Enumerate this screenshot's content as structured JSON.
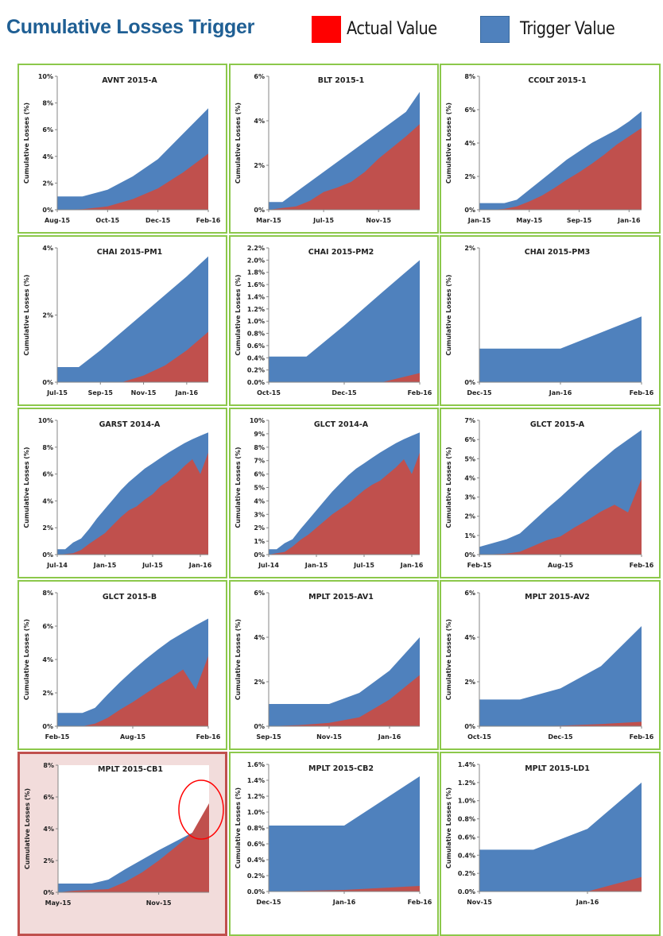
{
  "header": {
    "title": "Cumulative Losses Trigger",
    "legend": [
      {
        "label": "Actual Value",
        "color": "#ff0000"
      },
      {
        "label": "Trigger Value",
        "color": "#4f81bd"
      }
    ]
  },
  "colors": {
    "actual_fill": "#c0504d",
    "trigger_fill": "#4f81bd",
    "panel_border": "#8cc84b",
    "alert_border": "#c0504d",
    "alert_background": "#f2dcdb",
    "alert_circle": "#ff0000"
  },
  "chart_data": [
    {
      "type": "area",
      "title": "AVNT 2015-A",
      "ylabel": "Cumulative Losses (%)",
      "x": [
        "Aug-15",
        "Sep-15",
        "Oct-15",
        "Nov-15",
        "Dec-15",
        "Jan-16",
        "Feb-16"
      ],
      "xticks": [
        "Aug-15",
        "Oct-15",
        "Dec-15",
        "Feb-16"
      ],
      "ylim": [
        0,
        10
      ],
      "yticks": [
        "0%",
        "2%",
        "4%",
        "6%",
        "8%",
        "10%"
      ],
      "ytick_values": [
        0,
        2,
        4,
        6,
        8,
        10
      ],
      "series": [
        {
          "name": "Trigger Value",
          "values": [
            1.0,
            1.0,
            1.5,
            2.5,
            3.8,
            5.7,
            7.6
          ]
        },
        {
          "name": "Actual Value",
          "values": [
            0.0,
            0.05,
            0.25,
            0.8,
            1.6,
            2.8,
            4.2
          ]
        }
      ]
    },
    {
      "type": "area",
      "title": "BLT 2015-1",
      "ylabel": "Cumulative Losses (%)",
      "x": [
        "Mar-15",
        "Apr-15",
        "May-15",
        "Jun-15",
        "Jul-15",
        "Aug-15",
        "Sep-15",
        "Oct-15",
        "Nov-15",
        "Dec-15",
        "Jan-16",
        "Feb-16"
      ],
      "xticks": [
        "Mar-15",
        "Jul-15",
        "Nov-15"
      ],
      "ylim": [
        0,
        6
      ],
      "yticks": [
        "0%",
        "2%",
        "4%",
        "6%"
      ],
      "ytick_values": [
        0,
        2,
        4,
        6
      ],
      "series": [
        {
          "name": "Trigger Value",
          "values": [
            0.35,
            0.35,
            0.8,
            1.25,
            1.7,
            2.15,
            2.6,
            3.05,
            3.5,
            3.95,
            4.4,
            5.3
          ]
        },
        {
          "name": "Actual Value",
          "values": [
            0.0,
            0.08,
            0.15,
            0.4,
            0.8,
            1.0,
            1.25,
            1.7,
            2.3,
            2.8,
            3.3,
            3.85
          ]
        }
      ]
    },
    {
      "type": "area",
      "title": "CCOLT 2015-1",
      "ylabel": "Cumulative Losses (%)",
      "x": [
        "Jan-15",
        "Feb-15",
        "Mar-15",
        "Apr-15",
        "May-15",
        "Jun-15",
        "Jul-15",
        "Aug-15",
        "Sep-15",
        "Oct-15",
        "Nov-15",
        "Dec-15",
        "Jan-16",
        "Feb-16"
      ],
      "xticks": [
        "Jan-15",
        "May-15",
        "Sep-15",
        "Jan-16"
      ],
      "ylim": [
        0,
        8
      ],
      "yticks": [
        "0%",
        "2%",
        "4%",
        "6%",
        "8%"
      ],
      "ytick_values": [
        0,
        2,
        4,
        6,
        8
      ],
      "series": [
        {
          "name": "Trigger Value",
          "values": [
            0.4,
            0.4,
            0.4,
            0.6,
            1.2,
            1.8,
            2.4,
            3.0,
            3.5,
            4.0,
            4.4,
            4.8,
            5.3,
            5.9
          ]
        },
        {
          "name": "Actual Value",
          "values": [
            0.0,
            0.0,
            0.05,
            0.2,
            0.5,
            0.85,
            1.3,
            1.8,
            2.25,
            2.75,
            3.3,
            3.9,
            4.4,
            4.9
          ]
        }
      ]
    },
    {
      "type": "area",
      "title": "CHAI 2015-PM1",
      "ylabel": "Cumulative Losses (%)",
      "x": [
        "Jul-15",
        "Aug-15",
        "Sep-15",
        "Oct-15",
        "Nov-15",
        "Dec-15",
        "Jan-16",
        "Feb-16"
      ],
      "xticks": [
        "Jul-15",
        "Sep-15",
        "Nov-15",
        "Jan-16"
      ],
      "ylim": [
        0,
        4
      ],
      "yticks": [
        "0%",
        "2%",
        "4%"
      ],
      "ytick_values": [
        0,
        2,
        4
      ],
      "series": [
        {
          "name": "Trigger Value",
          "values": [
            0.45,
            0.45,
            0.95,
            1.5,
            2.05,
            2.6,
            3.15,
            3.75
          ]
        },
        {
          "name": "Actual Value",
          "values": [
            0.0,
            0.0,
            0.0,
            0.0,
            0.2,
            0.5,
            0.95,
            1.5
          ]
        }
      ]
    },
    {
      "type": "area",
      "title": "CHAI 2015-PM2",
      "ylabel": "Cumulative Losses (%)",
      "x": [
        "Oct-15",
        "Nov-15",
        "Dec-15",
        "Jan-16",
        "Feb-16"
      ],
      "xticks": [
        "Oct-15",
        "Dec-15",
        "Feb-16"
      ],
      "ylim": [
        0,
        2.2
      ],
      "yticks": [
        "0.0%",
        "0.2%",
        "0.4%",
        "0.6%",
        "0.8%",
        "1.0%",
        "1.2%",
        "1.4%",
        "1.6%",
        "1.8%",
        "2.0%",
        "2.2%"
      ],
      "ytick_values": [
        0,
        0.2,
        0.4,
        0.6,
        0.8,
        1.0,
        1.2,
        1.4,
        1.6,
        1.8,
        2.0,
        2.2
      ],
      "series": [
        {
          "name": "Trigger Value",
          "values": [
            0.42,
            0.42,
            0.93,
            1.47,
            2.0
          ]
        },
        {
          "name": "Actual Value",
          "values": [
            0.0,
            0.0,
            0.0,
            0.0,
            0.15
          ]
        }
      ]
    },
    {
      "type": "area",
      "title": "CHAI 2015-PM3",
      "ylabel": "Cumulative Losses (%)",
      "x": [
        "Dec-15",
        "Jan-16",
        "Feb-16"
      ],
      "xticks": [
        "Dec-15",
        "Jan-16",
        "Feb-16"
      ],
      "ylim": [
        0,
        2
      ],
      "yticks": [
        "0%",
        "2%"
      ],
      "ytick_values": [
        0,
        2
      ],
      "series": [
        {
          "name": "Trigger Value",
          "values": [
            0.5,
            0.5,
            0.98
          ]
        },
        {
          "name": "Actual Value",
          "values": [
            0.0,
            0.0,
            0.0
          ]
        }
      ]
    },
    {
      "type": "area",
      "title": "GARST 2014-A",
      "ylabel": "Cumulative Losses (%)",
      "x": [
        "Jul-14",
        "Aug-14",
        "Sep-14",
        "Oct-14",
        "Nov-14",
        "Dec-14",
        "Jan-15",
        "Feb-15",
        "Mar-15",
        "Apr-15",
        "May-15",
        "Jun-15",
        "Jul-15",
        "Aug-15",
        "Sep-15",
        "Oct-15",
        "Nov-15",
        "Dec-15",
        "Jan-16",
        "Feb-16"
      ],
      "xticks": [
        "Jul-14",
        "Jan-15",
        "Jul-15",
        "Jan-16"
      ],
      "ylim": [
        0,
        10
      ],
      "yticks": [
        "0%",
        "2%",
        "4%",
        "6%",
        "8%",
        "10%"
      ],
      "ytick_values": [
        0,
        2,
        4,
        6,
        8,
        10
      ],
      "series": [
        {
          "name": "Trigger Value",
          "values": [
            0.4,
            0.4,
            0.9,
            1.2,
            1.9,
            2.7,
            3.4,
            4.1,
            4.8,
            5.4,
            5.9,
            6.4,
            6.8,
            7.2,
            7.6,
            7.95,
            8.3,
            8.6,
            8.85,
            9.1
          ]
        },
        {
          "name": "Actual Value",
          "values": [
            0.0,
            0.05,
            0.1,
            0.35,
            0.8,
            1.2,
            1.6,
            2.2,
            2.8,
            3.3,
            3.6,
            4.1,
            4.5,
            5.1,
            5.5,
            6.0,
            6.6,
            7.1,
            6.0,
            7.6
          ]
        }
      ]
    },
    {
      "type": "area",
      "title": "GLCT 2014-A",
      "ylabel": "Cumulative Losses (%)",
      "x": [
        "Jul-14",
        "Aug-14",
        "Sep-14",
        "Oct-14",
        "Nov-14",
        "Dec-14",
        "Jan-15",
        "Feb-15",
        "Mar-15",
        "Apr-15",
        "May-15",
        "Jun-15",
        "Jul-15",
        "Aug-15",
        "Sep-15",
        "Oct-15",
        "Nov-15",
        "Dec-15",
        "Jan-16",
        "Feb-16"
      ],
      "xticks": [
        "Jul-14",
        "Jan-15",
        "Jul-15",
        "Jan-16"
      ],
      "ylim": [
        0,
        10
      ],
      "yticks": [
        "0%",
        "1%",
        "2%",
        "3%",
        "4%",
        "5%",
        "6%",
        "7%",
        "8%",
        "9%",
        "10%"
      ],
      "ytick_values": [
        0,
        1,
        2,
        3,
        4,
        5,
        6,
        7,
        8,
        9,
        10
      ],
      "series": [
        {
          "name": "Trigger Value",
          "values": [
            0.4,
            0.4,
            0.85,
            1.15,
            1.9,
            2.6,
            3.3,
            4.0,
            4.7,
            5.3,
            5.9,
            6.4,
            6.8,
            7.2,
            7.6,
            7.95,
            8.3,
            8.6,
            8.85,
            9.1
          ]
        },
        {
          "name": "Actual Value",
          "values": [
            0.0,
            0.1,
            0.2,
            0.6,
            1.1,
            1.5,
            2.0,
            2.5,
            3.0,
            3.4,
            3.8,
            4.3,
            4.8,
            5.2,
            5.5,
            6.0,
            6.5,
            7.1,
            6.0,
            7.6
          ]
        }
      ]
    },
    {
      "type": "area",
      "title": "GLCT 2015-A",
      "ylabel": "Cumulative Losses (%)",
      "x": [
        "Feb-15",
        "Mar-15",
        "Apr-15",
        "May-15",
        "Jun-15",
        "Jul-15",
        "Aug-15",
        "Sep-15",
        "Oct-15",
        "Nov-15",
        "Dec-15",
        "Jan-16",
        "Feb-16"
      ],
      "xticks": [
        "Feb-15",
        "Aug-15",
        "Feb-16"
      ],
      "ylim": [
        0,
        7
      ],
      "yticks": [
        "0%",
        "1%",
        "2%",
        "3%",
        "4%",
        "5%",
        "6%",
        "7%"
      ],
      "ytick_values": [
        0,
        1,
        2,
        3,
        4,
        5,
        6,
        7
      ],
      "series": [
        {
          "name": "Trigger Value",
          "values": [
            0.4,
            0.6,
            0.8,
            1.1,
            1.75,
            2.4,
            3.0,
            3.65,
            4.3,
            4.9,
            5.5,
            6.0,
            6.5
          ]
        },
        {
          "name": "Actual Value",
          "values": [
            0.0,
            0.02,
            0.05,
            0.15,
            0.45,
            0.75,
            0.95,
            1.4,
            1.8,
            2.25,
            2.6,
            2.2,
            3.95
          ]
        }
      ]
    },
    {
      "type": "area",
      "title": "GLCT 2015-B",
      "ylabel": "Cumulative Losses (%)",
      "x": [
        "Feb-15",
        "Mar-15",
        "Apr-15",
        "May-15",
        "Jun-15",
        "Jul-15",
        "Aug-15",
        "Sep-15",
        "Oct-15",
        "Nov-15",
        "Dec-15",
        "Jan-16",
        "Feb-16"
      ],
      "xticks": [
        "Feb-15",
        "Aug-15",
        "Feb-16"
      ],
      "ylim": [
        0,
        8
      ],
      "yticks": [
        "0%",
        "2%",
        "4%",
        "6%",
        "8%"
      ],
      "ytick_values": [
        0,
        2,
        4,
        6,
        8
      ],
      "series": [
        {
          "name": "Trigger Value",
          "values": [
            0.8,
            0.8,
            0.8,
            1.1,
            1.9,
            2.65,
            3.35,
            4.0,
            4.6,
            5.15,
            5.6,
            6.05,
            6.45
          ]
        },
        {
          "name": "Actual Value",
          "values": [
            0.0,
            0.0,
            0.0,
            0.15,
            0.5,
            1.0,
            1.45,
            1.95,
            2.45,
            2.9,
            3.4,
            2.2,
            4.2
          ]
        }
      ]
    },
    {
      "type": "area",
      "title": "MPLT 2015-AV1",
      "ylabel": "Cumulative Losses (%)",
      "x": [
        "Sep-15",
        "Oct-15",
        "Nov-15",
        "Dec-15",
        "Jan-16",
        "Feb-16"
      ],
      "xticks": [
        "Sep-15",
        "Nov-15",
        "Jan-16"
      ],
      "ylim": [
        0,
        6
      ],
      "yticks": [
        "0%",
        "2%",
        "4%",
        "6%"
      ],
      "ytick_values": [
        0,
        2,
        4,
        6
      ],
      "series": [
        {
          "name": "Trigger Value",
          "values": [
            1.0,
            1.0,
            1.0,
            1.5,
            2.5,
            4.0
          ]
        },
        {
          "name": "Actual Value",
          "values": [
            0.0,
            0.05,
            0.15,
            0.4,
            1.2,
            2.3
          ]
        }
      ]
    },
    {
      "type": "area",
      "title": "MPLT 2015-AV2",
      "ylabel": "Cumulative Losses (%)",
      "x": [
        "Oct-15",
        "Nov-15",
        "Dec-15",
        "Jan-16",
        "Feb-16"
      ],
      "xticks": [
        "Oct-15",
        "Dec-15",
        "Feb-16"
      ],
      "ylim": [
        0,
        6
      ],
      "yticks": [
        "0%",
        "2%",
        "4%",
        "6%"
      ],
      "ytick_values": [
        0,
        2,
        4,
        6
      ],
      "series": [
        {
          "name": "Trigger Value",
          "values": [
            1.2,
            1.2,
            1.7,
            2.7,
            4.5
          ]
        },
        {
          "name": "Actual Value",
          "values": [
            0.0,
            0.0,
            0.02,
            0.1,
            0.2
          ]
        }
      ]
    },
    {
      "type": "area",
      "title": "MPLT 2015-CB1",
      "ylabel": "Cumulative Losses (%)",
      "highlighted": true,
      "annotation": "red circle marking where Actual Value exceeds Trigger Value",
      "x": [
        "May-15",
        "Jun-15",
        "Jul-15",
        "Aug-15",
        "Sep-15",
        "Oct-15",
        "Nov-15",
        "Dec-15",
        "Jan-16",
        "Feb-16"
      ],
      "xticks": [
        "May-15",
        "Nov-15"
      ],
      "ylim": [
        0,
        8
      ],
      "yticks": [
        "0%",
        "2%",
        "4%",
        "6%",
        "8%"
      ],
      "ytick_values": [
        0,
        2,
        4,
        6,
        8
      ],
      "series": [
        {
          "name": "Trigger Value",
          "values": [
            0.55,
            0.55,
            0.55,
            0.8,
            1.45,
            2.05,
            2.65,
            3.2,
            3.75,
            3.75
          ]
        },
        {
          "name": "Actual Value",
          "values": [
            0.0,
            0.1,
            0.15,
            0.2,
            0.65,
            1.25,
            2.0,
            2.85,
            3.75,
            5.6
          ]
        }
      ]
    },
    {
      "type": "area",
      "title": "MPLT 2015-CB2",
      "ylabel": "Cumulative Losses (%)",
      "x": [
        "Dec-15",
        "Jan-16",
        "Feb-16"
      ],
      "xticks": [
        "Dec-15",
        "Jan-16",
        "Feb-16"
      ],
      "ylim": [
        0,
        1.6
      ],
      "yticks": [
        "0.0%",
        "0.2%",
        "0.4%",
        "0.6%",
        "0.8%",
        "1.0%",
        "1.2%",
        "1.4%",
        "1.6%"
      ],
      "ytick_values": [
        0,
        0.2,
        0.4,
        0.6,
        0.8,
        1.0,
        1.2,
        1.4,
        1.6
      ],
      "series": [
        {
          "name": "Trigger Value",
          "values": [
            0.83,
            0.83,
            1.45
          ]
        },
        {
          "name": "Actual Value",
          "values": [
            0.0,
            0.02,
            0.07
          ]
        }
      ]
    },
    {
      "type": "area",
      "title": "MPLT 2015-LD1",
      "ylabel": "Cumulative Losses (%)",
      "x": [
        "Nov-15",
        "Dec-15",
        "Jan-16",
        "Feb-16"
      ],
      "xticks": [
        "Nov-15",
        "Jan-16"
      ],
      "ylim": [
        0,
        1.4
      ],
      "yticks": [
        "0.0%",
        "0.2%",
        "0.4%",
        "0.6%",
        "0.8%",
        "1.0%",
        "1.2%",
        "1.4%"
      ],
      "ytick_values": [
        0,
        0.2,
        0.4,
        0.6,
        0.8,
        1.0,
        1.2,
        1.4
      ],
      "series": [
        {
          "name": "Trigger Value",
          "values": [
            0.46,
            0.46,
            0.69,
            1.2
          ]
        },
        {
          "name": "Actual Value",
          "values": [
            0.0,
            0.0,
            0.0,
            0.16
          ]
        }
      ]
    }
  ]
}
